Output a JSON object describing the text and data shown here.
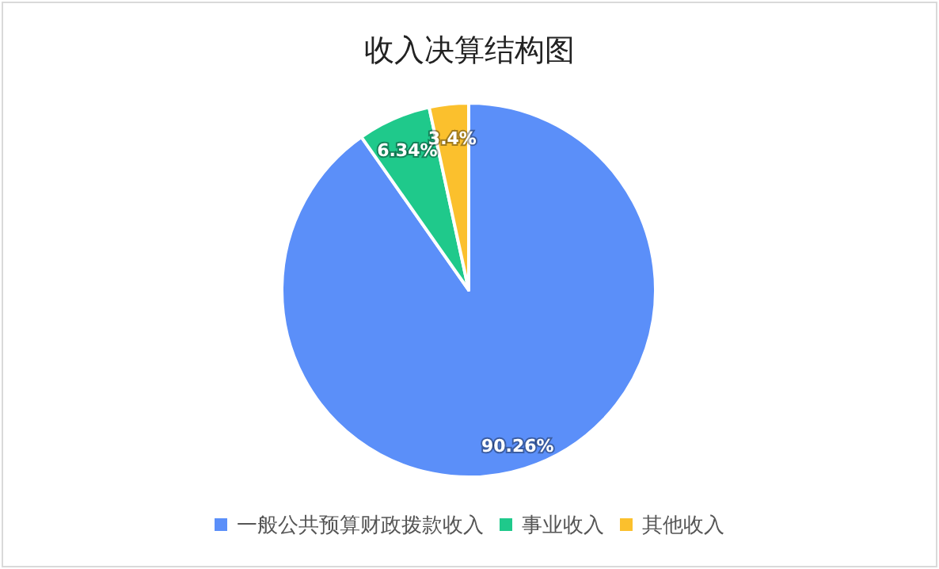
{
  "chart_data": {
    "type": "pie",
    "title": "收入决算结构图",
    "categories": [
      "一般公共预算财政拨款收入",
      "事业收入",
      "其他收入"
    ],
    "values": [
      90.26,
      6.34,
      3.4
    ],
    "value_labels": [
      "90.26%",
      "6.34%",
      "3.4%"
    ],
    "colors": [
      "#5b8ff9",
      "#1fc98b",
      "#fbc02d"
    ],
    "legend": "bottom"
  }
}
